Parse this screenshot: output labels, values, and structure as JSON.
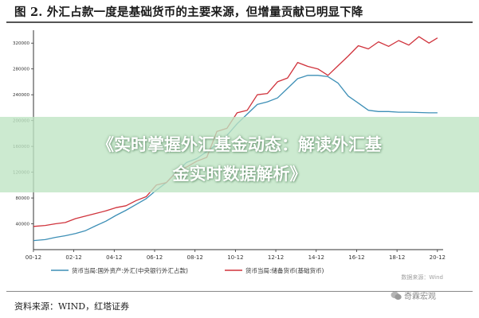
{
  "figure": {
    "title": "图 2. 外汇占款一度是基础货币的主要来源，但增量贡献已明显下降",
    "source": "资料来源：WIND，红塔证券",
    "watermark_chart": "数据来源：Wind",
    "wechat_account": "奇霖宏观"
  },
  "banner": {
    "line1": "《实时掌握外汇基金动态：解读外汇基",
    "line2": "金实时数据解析》"
  },
  "colors": {
    "series1": "#3d8fb6",
    "series2": "#d0333c",
    "banner": "#bee4c3",
    "axis": "#333333"
  },
  "chart_data": {
    "type": "line",
    "x_ticks": [
      "00-12",
      "02-12",
      "04-12",
      "06-12",
      "08-12",
      "10-12",
      "12-12",
      "14-12",
      "16-12",
      "18-12",
      "20-12"
    ],
    "y_ticks": [
      "40000",
      "80000",
      "120000",
      "160000",
      "200000",
      "240000",
      "280000",
      "320000"
    ],
    "ylim": [
      0,
      340000
    ],
    "xlim": [
      2000.92,
      2021.2
    ],
    "grid": false,
    "legend_position": "bottom",
    "series": [
      {
        "name": "货币当局:国外资产:外汇(中央银行外汇占款)",
        "color": "#3d8fb6",
        "x": [
          2000.92,
          2001.5,
          2002,
          2002.5,
          2003,
          2003.5,
          2004,
          2004.5,
          2005,
          2005.5,
          2006,
          2006.5,
          2007,
          2007.5,
          2008,
          2008.5,
          2009,
          2009.5,
          2010,
          2010.5,
          2011,
          2011.5,
          2012,
          2012.5,
          2013,
          2013.5,
          2014,
          2014.5,
          2015,
          2015.5,
          2016,
          2016.5,
          2017,
          2017.5,
          2018,
          2018.5,
          2019,
          2019.5,
          2020,
          2020.5,
          2020.92
        ],
        "y": [
          14000,
          15500,
          19000,
          21500,
          25000,
          29500,
          37000,
          44000,
          53000,
          61000,
          70000,
          79000,
          92000,
          104000,
          121000,
          135000,
          141000,
          152000,
          163000,
          177000,
          195000,
          210000,
          225000,
          229000,
          235000,
          250000,
          265000,
          270000,
          270000,
          268000,
          258000,
          238000,
          227000,
          216000,
          214000,
          214000,
          213000,
          213000,
          212500,
          212000,
          212000
        ]
      },
      {
        "name": "货币当局:储备货币(基础货币)",
        "color": "#d0333c",
        "x": [
          2000.92,
          2001.5,
          2002,
          2002.5,
          2003,
          2003.5,
          2004,
          2004.5,
          2005,
          2005.5,
          2006,
          2006.5,
          2007,
          2007.5,
          2008,
          2008.5,
          2009,
          2009.5,
          2010,
          2010.5,
          2011,
          2011.5,
          2012,
          2012.5,
          2013,
          2013.5,
          2014,
          2014.5,
          2015,
          2015.5,
          2016,
          2016.5,
          2017,
          2017.5,
          2018,
          2018.5,
          2019,
          2019.5,
          2020,
          2020.5,
          2020.92
        ],
        "y": [
          36000,
          37500,
          40000,
          42000,
          48000,
          52000,
          56000,
          60000,
          65000,
          68000,
          76000,
          82000,
          100000,
          104000,
          120000,
          128000,
          137000,
          143000,
          183000,
          188000,
          212000,
          216000,
          240000,
          242000,
          260000,
          266000,
          290000,
          284000,
          280000,
          270000,
          285000,
          300000,
          316000,
          311000,
          322000,
          315000,
          324000,
          317000,
          330000,
          320000,
          328000
        ]
      }
    ]
  }
}
